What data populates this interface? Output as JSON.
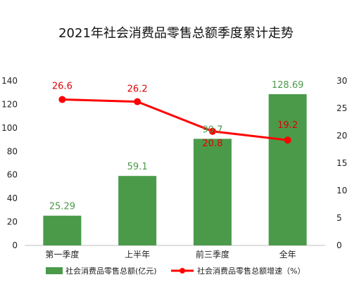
{
  "chart_data": {
    "type": "bar",
    "title": "2021年社会消费品零售总额季度累计走势",
    "categories": [
      "第一季度",
      "上半年",
      "前三季度",
      "全年"
    ],
    "series": [
      {
        "name": "社会消费品零售总额(亿元)",
        "type": "bar",
        "axis": "left",
        "values": [
          25.29,
          59.1,
          90.7,
          128.69
        ],
        "labels": [
          "25.29",
          "59.1",
          "90.7",
          "128.69"
        ],
        "color": "#4a9a4a",
        "label_color": "#4a9a4a"
      },
      {
        "name": "社会消费品零售总额增速（%）",
        "type": "line",
        "axis": "right",
        "values": [
          26.6,
          26.2,
          20.8,
          19.2
        ],
        "labels": [
          "26.6",
          "26.2",
          "20.8",
          "19.2"
        ],
        "color": "#ff0000",
        "label_color": "#e00000"
      }
    ],
    "y_left": {
      "min": 0,
      "max": 140,
      "ticks": [
        "0",
        "20",
        "40",
        "60",
        "80",
        "100",
        "120",
        "140"
      ]
    },
    "y_right": {
      "min": 0,
      "max": 30,
      "ticks": [
        "0",
        "5",
        "10",
        "15",
        "20",
        "25",
        "30"
      ]
    },
    "grid": false,
    "legend_position": "bottom"
  }
}
